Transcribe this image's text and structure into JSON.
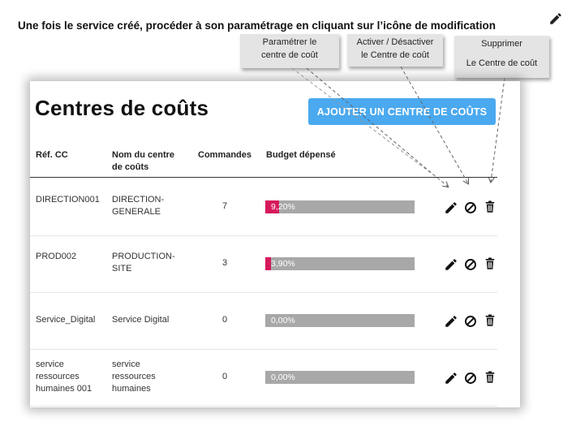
{
  "instruction": {
    "text_before": "Une fois le service créé, procéder à son paramétrage en cliquant sur l’icône ",
    "text_after": "de modification"
  },
  "callouts": {
    "configure": [
      "Paramétrer le",
      "centre de coût"
    ],
    "toggle": [
      "Activer / Désactiver",
      "le Centre de coût"
    ],
    "delete": [
      "Supprimer",
      "Le Centre de coût"
    ]
  },
  "page": {
    "title": "Centres de coûts",
    "add_button": "AJOUTER UN CENTRE DE COÛTS"
  },
  "table": {
    "headers": {
      "ref": "Réf. CC",
      "name": [
        "Nom du centre",
        "de coûts"
      ],
      "orders": "Commandes",
      "budget": "Budget dépensé"
    },
    "rows": [
      {
        "ref": [
          "DIRECTION001"
        ],
        "name": [
          "DIRECTION-",
          "GENERALE"
        ],
        "orders": "7",
        "budget_label": "9,20%",
        "budget_pct": 9.2
      },
      {
        "ref": [
          "PROD002"
        ],
        "name": [
          "PRODUCTION-",
          "SITE"
        ],
        "orders": "3",
        "budget_label": "3,90%",
        "budget_pct": 3.9
      },
      {
        "ref": [
          "Service_Digital"
        ],
        "name": [
          "Service Digital"
        ],
        "orders": "0",
        "budget_label": "0,00%",
        "budget_pct": 0
      },
      {
        "ref": [
          "service",
          "ressources",
          "humaines 001"
        ],
        "name": [
          "service",
          "ressources",
          "humaines"
        ],
        "orders": "0",
        "budget_label": "0,00%",
        "budget_pct": 0
      }
    ]
  },
  "icons": {
    "edit": "pencil-icon",
    "toggle": "ban-icon",
    "delete": "trash-icon"
  },
  "colors": {
    "button": "#4aa9ef",
    "bar_fill": "#d6195c",
    "bar_track": "#a8a8a8"
  }
}
